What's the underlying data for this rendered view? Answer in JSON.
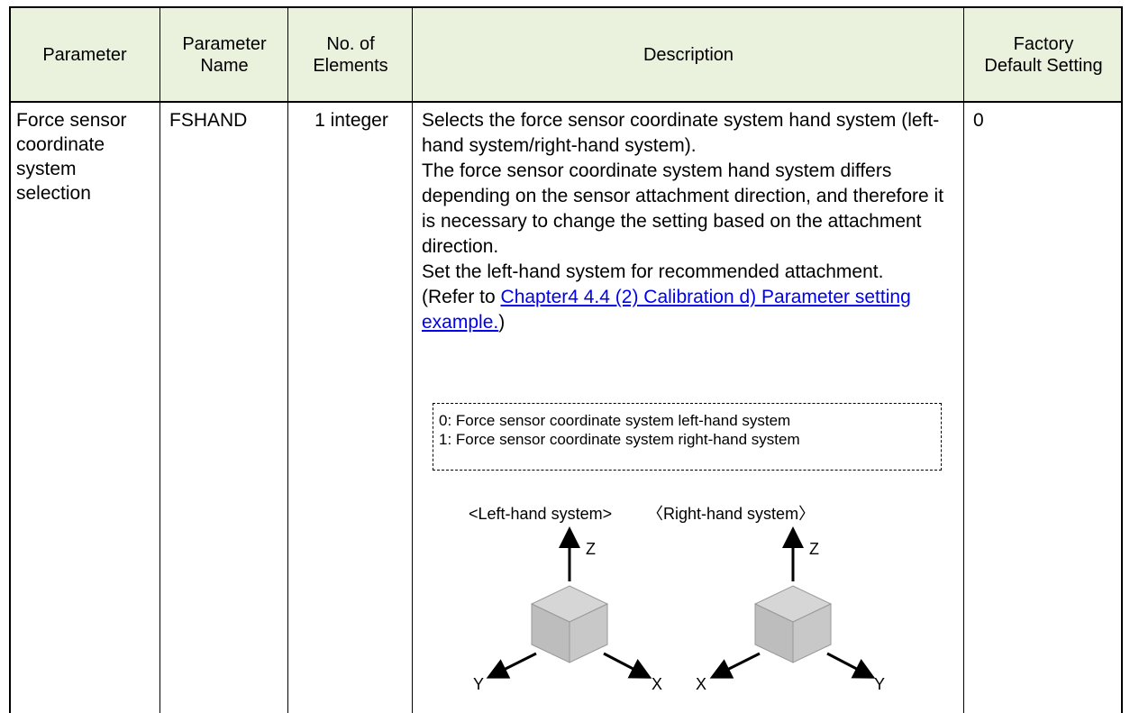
{
  "table": {
    "headers": [
      [
        "Parameter"
      ],
      [
        "Parameter",
        "Name"
      ],
      [
        "No. of",
        "Elements"
      ],
      [
        "Description"
      ],
      [
        "Factory",
        "Default Setting"
      ]
    ],
    "rows": [
      {
        "parameter": "Force sensor coordinate system selection",
        "name": "FSHAND",
        "elements": "1 integer",
        "description": {
          "paragraphs": [
            "Selects the force sensor coordinate system hand system (left-hand system/right-hand system).",
            "The force sensor coordinate system hand system differs depending on the sensor attachment direction, and therefore it is necessary to change the setting based on the attachment direction.",
            "Set the left-hand system for recommended attachment."
          ],
          "refer_prefix": "(Refer to ",
          "link": "Chapter4 4.4 (2) Calibration d) Parameter setting example.",
          "refer_suffix": ")",
          "options": [
            "0: Force sensor coordinate system left-hand system",
            "1: Force sensor coordinate system right-hand system"
          ],
          "figures": [
            {
              "title": "<Left-hand system>",
              "axes": [
                "Z",
                "Y",
                "X"
              ]
            },
            {
              "title": "〈Right-hand system〉",
              "axes": [
                "Z",
                "X",
                "Y"
              ]
            }
          ]
        },
        "default": "0"
      }
    ]
  }
}
